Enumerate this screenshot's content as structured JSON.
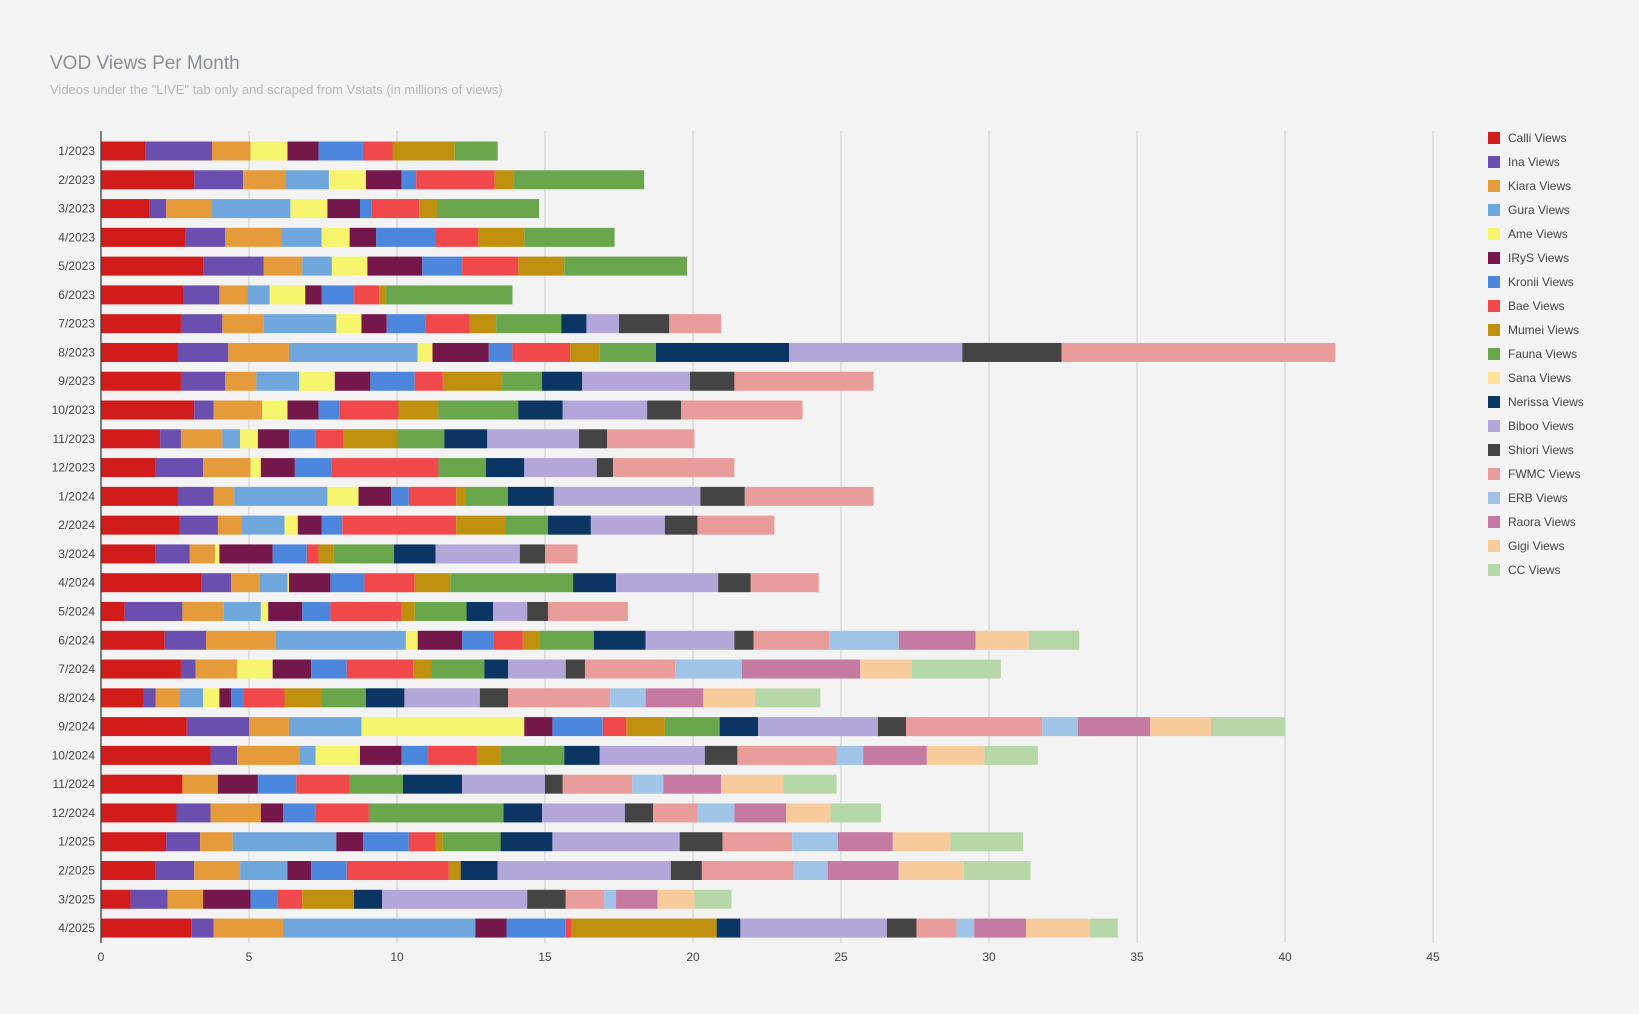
{
  "chart_data": {
    "type": "bar",
    "orientation": "horizontal",
    "stacked": true,
    "title": "VOD Views Per Month",
    "subtitle": "Videos under the \"LIVE\" tab only and scraped from Vstats (in millions of views)",
    "xlabel": "",
    "ylabel": "",
    "xlim": [
      0,
      45
    ],
    "xticks": [
      0,
      5,
      10,
      15,
      20,
      25,
      30,
      35,
      40,
      45
    ],
    "grid": true,
    "legend_position": "right",
    "categories": [
      "1/2023",
      "2/2023",
      "3/2023",
      "4/2023",
      "5/2023",
      "6/2023",
      "7/2023",
      "8/2023",
      "9/2023",
      "10/2023",
      "11/2023",
      "12/2023",
      "1/2024",
      "2/2024",
      "3/2024",
      "4/2024",
      "5/2024",
      "6/2024",
      "7/2024",
      "8/2024",
      "9/2024",
      "10/2024",
      "11/2024",
      "12/2024",
      "1/2025",
      "2/2025",
      "3/2025",
      "4/2025"
    ],
    "series": [
      {
        "name": "Calli Views",
        "color": "#d21c1c",
        "values": [
          1.5,
          3.15,
          1.65,
          2.85,
          3.45,
          2.8,
          2.7,
          2.6,
          2.7,
          3.15,
          2.0,
          1.85,
          2.6,
          2.65,
          1.85,
          3.4,
          0.8,
          2.15,
          2.7,
          1.45,
          2.9,
          3.7,
          2.75,
          2.55,
          2.2,
          1.85,
          1.0,
          3.05
        ]
      },
      {
        "name": "Ina Views",
        "color": "#6a4fae",
        "values": [
          2.25,
          1.65,
          0.55,
          1.35,
          2.05,
          1.2,
          1.4,
          1.7,
          1.5,
          0.65,
          0.7,
          1.6,
          1.2,
          1.3,
          1.15,
          1.0,
          1.95,
          1.4,
          0.5,
          0.4,
          2.1,
          0.9,
          0.0,
          1.15,
          1.15,
          1.3,
          1.25,
          0.75
        ]
      },
      {
        "name": "Kiara Views",
        "color": "#e69b3b",
        "values": [
          1.3,
          1.45,
          1.55,
          1.9,
          1.3,
          0.95,
          1.4,
          2.05,
          1.05,
          1.65,
          1.4,
          1.6,
          0.7,
          0.8,
          0.85,
          0.95,
          1.4,
          2.35,
          1.4,
          0.8,
          1.35,
          2.1,
          1.2,
          1.7,
          1.1,
          1.55,
          1.2,
          2.35
        ]
      },
      {
        "name": "Gura Views",
        "color": "#6fa6dc",
        "values": [
          0,
          1.45,
          2.65,
          1.35,
          1.0,
          0.75,
          2.45,
          4.35,
          1.45,
          0,
          0.6,
          0,
          3.15,
          1.45,
          0,
          0.95,
          1.25,
          4.4,
          0,
          0.8,
          2.45,
          0.55,
          0,
          0,
          3.5,
          1.6,
          0,
          6.5
        ]
      },
      {
        "name": "Ame Views",
        "color": "#f7f56e",
        "values": [
          1.25,
          1.25,
          1.25,
          0.95,
          1.2,
          1.2,
          0.85,
          0.5,
          1.2,
          0.85,
          0.6,
          0.35,
          1.05,
          0.45,
          0.15,
          0.05,
          0.25,
          0.4,
          1.2,
          0.55,
          5.5,
          1.5,
          0,
          0,
          0,
          0,
          0,
          0
        ]
      },
      {
        "name": "IRyS Views",
        "color": "#74174a",
        "values": [
          1.05,
          1.2,
          1.1,
          0.9,
          1.85,
          0.55,
          0.85,
          1.9,
          1.2,
          1.05,
          1.05,
          1.15,
          1.1,
          0.8,
          1.8,
          1.4,
          1.15,
          1.5,
          1.3,
          0.4,
          0.95,
          1.4,
          1.35,
          0.75,
          0.9,
          0.8,
          1.6,
          1.05
        ]
      },
      {
        "name": "Kronii Views",
        "color": "#4c86dd",
        "values": [
          1.5,
          0.5,
          0.4,
          2.0,
          1.35,
          1.1,
          1.3,
          0.8,
          1.5,
          0.7,
          0.9,
          1.25,
          0.6,
          0.7,
          1.15,
          1.15,
          0.95,
          1.05,
          1.2,
          0.4,
          1.7,
          0.9,
          1.3,
          1.1,
          1.55,
          1.2,
          0.9,
          2.0
        ]
      },
      {
        "name": "Bae Views",
        "color": "#f0484b",
        "values": [
          1.0,
          2.65,
          1.6,
          1.45,
          1.9,
          0.85,
          1.5,
          1.95,
          0.95,
          2.0,
          0.95,
          3.6,
          1.6,
          3.85,
          0.4,
          1.7,
          2.4,
          1.0,
          2.25,
          1.4,
          0.8,
          1.65,
          1.8,
          1.8,
          0.9,
          3.45,
          0.85,
          0.2
        ]
      },
      {
        "name": "Mumei Views",
        "color": "#be900e",
        "values": [
          2.1,
          0.65,
          0.6,
          1.55,
          1.55,
          0.2,
          0.9,
          1.0,
          2.0,
          1.35,
          1.8,
          0,
          0.3,
          1.65,
          0.5,
          1.2,
          0.45,
          0.55,
          0.6,
          1.25,
          1.3,
          0.8,
          0,
          0,
          0.25,
          0.4,
          1.75,
          4.9
        ]
      },
      {
        "name": "Fauna Views",
        "color": "#6aa64c",
        "values": [
          1.45,
          4.4,
          3.45,
          3.05,
          4.15,
          4.3,
          2.2,
          1.9,
          1.35,
          2.7,
          1.6,
          1.6,
          1.45,
          1.45,
          2.05,
          4.15,
          1.75,
          1.85,
          1.8,
          1.5,
          1.85,
          2.15,
          1.8,
          4.55,
          1.95,
          0,
          0,
          0
        ]
      },
      {
        "name": "Sana Views",
        "color": "#fde39a",
        "values": [
          0,
          0,
          0,
          0,
          0,
          0,
          0,
          0,
          0,
          0,
          0,
          0,
          0,
          0,
          0,
          0,
          0,
          0,
          0,
          0,
          0,
          0,
          0,
          0,
          0,
          0,
          0,
          0
        ]
      },
      {
        "name": "Nerissa Views",
        "color": "#0b3663",
        "values": [
          0,
          0,
          0,
          0,
          0,
          0,
          0.85,
          4.5,
          1.35,
          1.5,
          1.45,
          1.3,
          1.55,
          1.45,
          1.4,
          1.45,
          0.9,
          1.75,
          0.8,
          1.3,
          1.3,
          1.2,
          2.0,
          1.3,
          1.75,
          1.25,
          0.95,
          0.8
        ]
      },
      {
        "name": "Biboo Views",
        "color": "#b3a7d9",
        "values": [
          0,
          0,
          0,
          0,
          0,
          0,
          1.1,
          5.85,
          3.65,
          2.85,
          3.1,
          2.45,
          4.95,
          2.5,
          2.85,
          3.45,
          1.15,
          3.0,
          1.95,
          2.55,
          4.05,
          3.55,
          2.8,
          2.8,
          4.3,
          5.85,
          4.9,
          4.95
        ]
      },
      {
        "name": "Shiori Views",
        "color": "#444444",
        "values": [
          0,
          0,
          0,
          0,
          0,
          0,
          1.7,
          3.35,
          1.5,
          1.15,
          0.95,
          0.55,
          1.5,
          1.1,
          0.85,
          1.1,
          0.7,
          0.65,
          0.65,
          0.95,
          0.95,
          1.1,
          0.6,
          0.95,
          1.45,
          1.05,
          1.3,
          1.0
        ]
      },
      {
        "name": "FWMC Views",
        "color": "#e99d9b",
        "values": [
          0,
          0,
          0,
          0,
          0,
          0,
          1.75,
          9.25,
          4.7,
          4.1,
          2.95,
          4.1,
          4.35,
          2.6,
          1.1,
          2.3,
          2.7,
          2.55,
          3.05,
          3.45,
          4.6,
          3.35,
          2.35,
          1.5,
          2.35,
          3.1,
          1.3,
          1.35
        ]
      },
      {
        "name": "ERB Views",
        "color": "#9fc4e8",
        "values": [
          0,
          0,
          0,
          0,
          0,
          0,
          0,
          0,
          0,
          0,
          0,
          0,
          0,
          0,
          0,
          0,
          0,
          2.35,
          2.25,
          1.2,
          1.2,
          0.9,
          1.05,
          1.25,
          1.55,
          1.15,
          0.4,
          0.6
        ]
      },
      {
        "name": "Raora Views",
        "color": "#c57ba1",
        "values": [
          0,
          0,
          0,
          0,
          0,
          0,
          0,
          0,
          0,
          0,
          0,
          0,
          0,
          0,
          0,
          0,
          0,
          2.6,
          4.0,
          1.95,
          2.45,
          2.15,
          1.95,
          1.75,
          1.85,
          2.4,
          1.4,
          1.75
        ]
      },
      {
        "name": "Gigi Views",
        "color": "#f8cb9c",
        "values": [
          0,
          0,
          0,
          0,
          0,
          0,
          0,
          0,
          0,
          0,
          0,
          0,
          0,
          0,
          0,
          0,
          0,
          1.8,
          1.75,
          1.75,
          2.05,
          1.95,
          2.1,
          1.5,
          1.95,
          2.2,
          1.25,
          2.15
        ]
      },
      {
        "name": "CC Views",
        "color": "#b6d7a7",
        "values": [
          0,
          0,
          0,
          0,
          0,
          0,
          0,
          0,
          0,
          0,
          0,
          0,
          0,
          0,
          0,
          0,
          0,
          1.7,
          3.0,
          2.2,
          2.5,
          1.8,
          1.8,
          1.7,
          2.45,
          2.25,
          1.25,
          0.95
        ]
      }
    ]
  }
}
